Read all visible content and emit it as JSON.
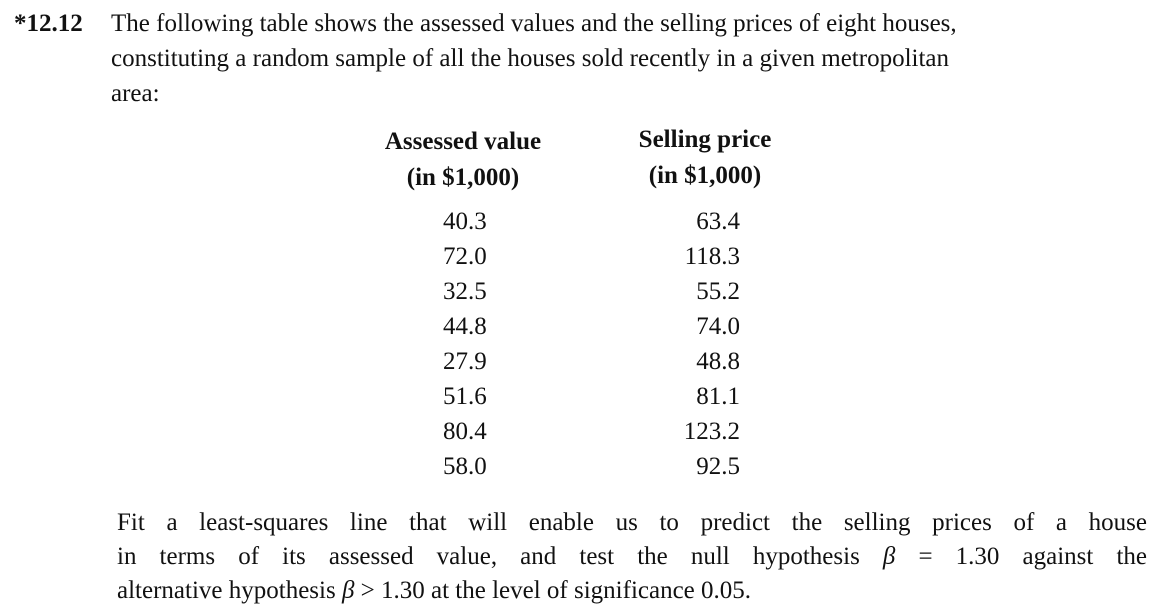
{
  "problem": {
    "number": "*12.12",
    "intro_lines": [
      "The following table shows the assessed values and the selling prices of eight houses,",
      "constituting a random sample of all the houses sold recently in a given metropolitan",
      "area:"
    ]
  },
  "table": {
    "headers": [
      {
        "line1": "Assessed value",
        "line2": "(in $1,000)"
      },
      {
        "line1": "Selling price",
        "line2": "(in $1,000)"
      }
    ],
    "assessed_values": [
      "40.3",
      "72.0",
      "32.5",
      "44.8",
      "27.9",
      "51.6",
      "80.4",
      "58.0"
    ],
    "selling_prices": [
      "63.4",
      "118.3",
      "55.2",
      "74.0",
      "48.8",
      "81.1",
      "123.2",
      "92.5"
    ]
  },
  "question": {
    "line1": "Fit a least-squares line that will enable us to predict the selling prices of a house",
    "line2_a": "in terms of its assessed value, and test the null hypothesis ",
    "beta": "β",
    "line2_b": " = 1.30 against the",
    "line3_a": "alternative hypothesis ",
    "line3_b": " > 1.30 at the level of significance 0.05."
  }
}
